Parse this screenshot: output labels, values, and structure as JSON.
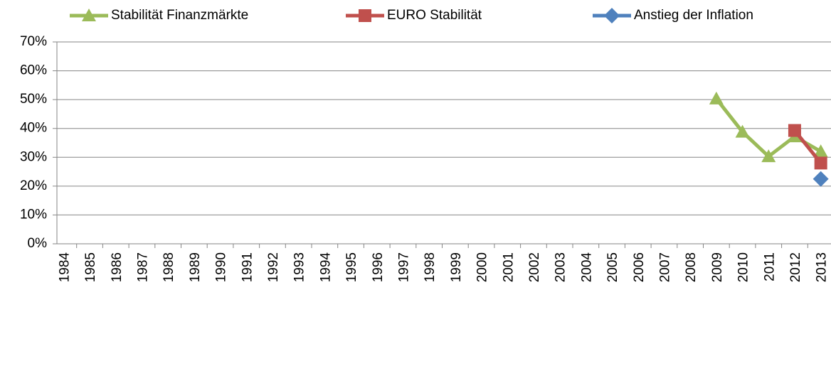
{
  "chart_data": {
    "type": "line",
    "categories": [
      "1984",
      "1985",
      "1986",
      "1987",
      "1988",
      "1989",
      "1990",
      "1991",
      "1992",
      "1993",
      "1994",
      "1995",
      "1996",
      "1997",
      "1998",
      "1999",
      "2000",
      "2001",
      "2002",
      "2003",
      "2004",
      "2005",
      "2006",
      "2007",
      "2008",
      "2009",
      "2010",
      "2011",
      "2012",
      "2013"
    ],
    "series": [
      {
        "name": "Stabilität Finanzmärkte",
        "color": "#9bbb59",
        "marker": "triangle",
        "values": [
          null,
          null,
          null,
          null,
          null,
          null,
          null,
          null,
          null,
          null,
          null,
          null,
          null,
          null,
          null,
          null,
          null,
          null,
          null,
          null,
          null,
          null,
          null,
          null,
          null,
          50.3,
          38.8,
          30.3,
          37.2,
          32.0
        ]
      },
      {
        "name": "EURO Stabilität",
        "color": "#c0504d",
        "marker": "square",
        "values": [
          null,
          null,
          null,
          null,
          null,
          null,
          null,
          null,
          null,
          null,
          null,
          null,
          null,
          null,
          null,
          null,
          null,
          null,
          null,
          null,
          null,
          null,
          null,
          null,
          null,
          null,
          null,
          null,
          39.3,
          28.0
        ]
      },
      {
        "name": "Anstieg der Inflation",
        "color": "#4f81bd",
        "marker": "diamond",
        "values": [
          null,
          null,
          null,
          null,
          null,
          null,
          null,
          null,
          null,
          null,
          null,
          null,
          null,
          null,
          null,
          null,
          null,
          null,
          null,
          null,
          null,
          null,
          null,
          null,
          null,
          null,
          null,
          null,
          null,
          22.5
        ]
      }
    ],
    "ylim": [
      0,
      70
    ],
    "yticks": [
      {
        "value": 0,
        "label": "0%"
      },
      {
        "value": 10,
        "label": "10%"
      },
      {
        "value": 20,
        "label": "20%"
      },
      {
        "value": 30,
        "label": "30%"
      },
      {
        "value": 40,
        "label": "40%"
      },
      {
        "value": 50,
        "label": "50%"
      },
      {
        "value": 60,
        "label": "60%"
      },
      {
        "value": 70,
        "label": "70%"
      }
    ],
    "grid": true,
    "legend": "top"
  }
}
